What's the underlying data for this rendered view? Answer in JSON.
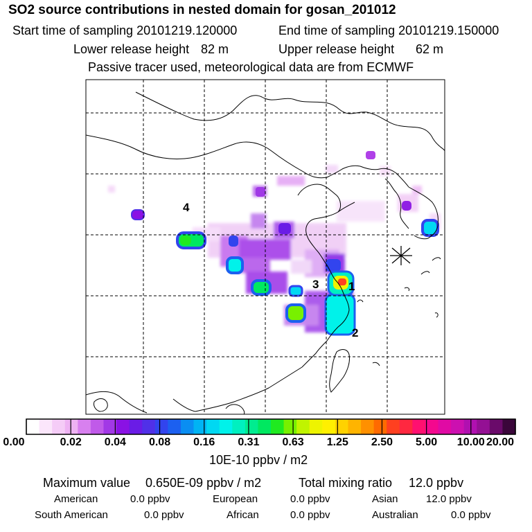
{
  "header": {
    "title": "SO2 source contributions in nested domain for gosan_201012",
    "start_label": "Start time of sampling 20101219.120000",
    "end_label": "End time of sampling 20101219.150000",
    "lower_label": "Lower release height",
    "lower_value": "82 m",
    "upper_label": "Upper release height",
    "upper_value": "62 m",
    "tracer_note": "Passive tracer used, meteorological data are from ECMWF"
  },
  "map": {
    "source_labels": [
      "1",
      "2",
      "3",
      "4"
    ],
    "receptor_symbol": "station-star"
  },
  "colorbar": {
    "ticks": [
      "0.00",
      "0.02",
      "0.04",
      "0.08",
      "0.16",
      "0.31",
      "0.63",
      "1.25",
      "2.50",
      "5.00",
      "10.00",
      "20.00"
    ],
    "unit": "10E-10 ppbv / m2",
    "colors": [
      "#ffffff",
      "#fbe6fb",
      "#f5ccf7",
      "#eeb2f3",
      "#d880ef",
      "#c05ae9",
      "#a238e6",
      "#8a12e4",
      "#6a1ce6",
      "#5030e8",
      "#3244ee",
      "#1c60f0",
      "#0a8ef2",
      "#00b4f4",
      "#00d8f2",
      "#00f2ea",
      "#00f0c0",
      "#00ec90",
      "#00e860",
      "#20ea20",
      "#78f000",
      "#c0f400",
      "#eef400",
      "#fff000",
      "#ffd200",
      "#ffb400",
      "#ff9000",
      "#ff6a00",
      "#ff4020",
      "#ff2840",
      "#ff1070",
      "#f4088e",
      "#e00aa4",
      "#cc10b0",
      "#b010b0",
      "#941094",
      "#6a0a6a",
      "#3a063a"
    ]
  },
  "footer": {
    "max_label": "Maximum value",
    "max_value": "0.650E-09 ppbv / m2",
    "total_label": "Total mixing ratio",
    "total_value": "12.0 ppbv",
    "regions": [
      {
        "name": "American",
        "value": "0.0 ppbv"
      },
      {
        "name": "European",
        "value": "0.0 ppbv"
      },
      {
        "name": "Asian",
        "value": "12.0 ppbv"
      },
      {
        "name": "South American",
        "value": "0.0 ppbv"
      },
      {
        "name": "African",
        "value": "0.0 ppbv"
      },
      {
        "name": "Australian",
        "value": "0.0 ppbv"
      }
    ]
  }
}
